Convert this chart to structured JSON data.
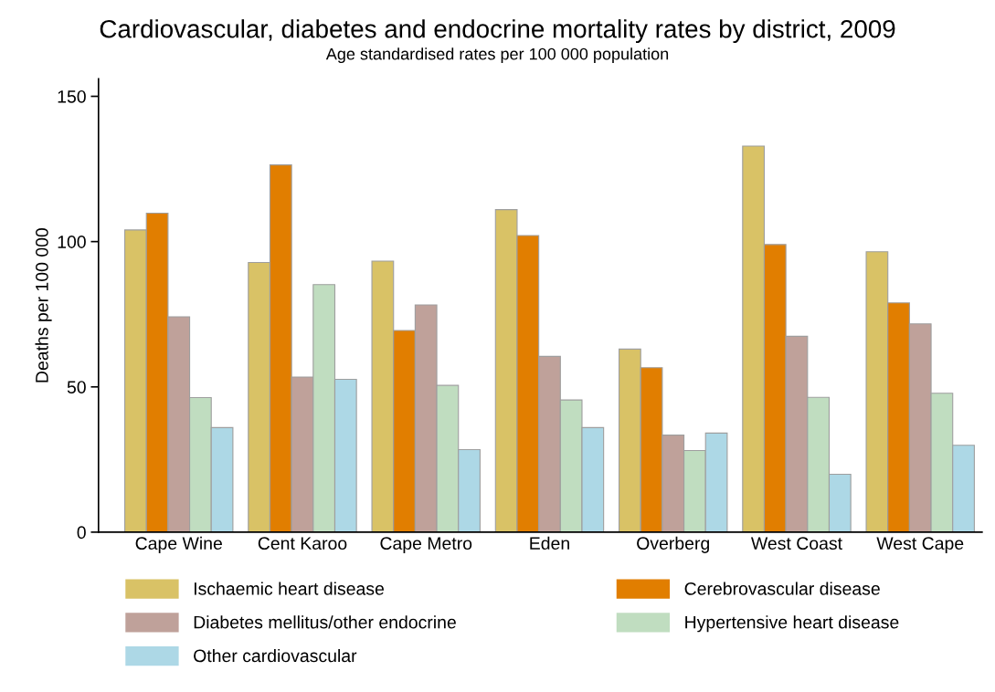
{
  "chart_data": {
    "type": "bar",
    "title": "Cardiovascular, diabetes and endocrine mortality rates by district, 2009",
    "subtitle": "Age standardised rates per 100 000 population",
    "ylabel": "Deaths per 100 000",
    "categories": [
      "Cape Wine",
      "Cent Karoo",
      "Cape Metro",
      "Eden",
      "Overberg",
      "West Coast",
      "West Cape"
    ],
    "series": [
      {
        "name": "Ischaemic heart disease",
        "color": "#d9c266",
        "values": [
          104.0,
          92.8,
          93.3,
          111.0,
          63.0,
          132.9,
          96.5
        ]
      },
      {
        "name": "Cerebrovascular disease",
        "color": "#e17e00",
        "values": [
          109.8,
          126.4,
          69.4,
          102.1,
          56.6,
          99.0,
          78.9
        ]
      },
      {
        "name": "Diabetes mellitus/other endocrine",
        "color": "#bfa19a",
        "values": [
          74.1,
          53.4,
          78.2,
          60.5,
          33.4,
          67.4,
          71.7
        ]
      },
      {
        "name": "Hypertensive heart disease",
        "color": "#c0ddc0",
        "values": [
          46.3,
          85.2,
          50.5,
          45.5,
          28.1,
          46.4,
          47.8
        ]
      },
      {
        "name": "Other cardiovascular",
        "color": "#add8e6",
        "values": [
          36.0,
          52.6,
          28.4,
          36.0,
          34.1,
          19.9,
          29.9
        ]
      }
    ],
    "ylim": [
      0,
      156
    ],
    "yticks": [
      0,
      50,
      100,
      150
    ],
    "grid": false,
    "legend": "bottom"
  }
}
